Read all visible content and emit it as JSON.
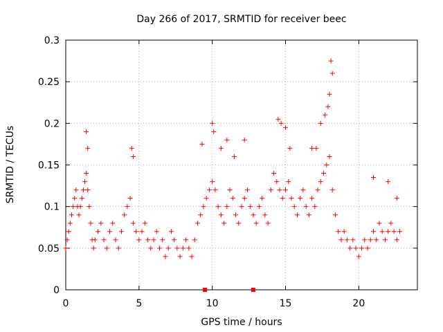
{
  "chart_data": {
    "type": "scatter",
    "title": "Day 266 of 2017, SRMTID for receiver beec",
    "xlabel": "GPS time / hours",
    "ylabel": "SRMTID / TECUs",
    "xlim": [
      0,
      24
    ],
    "ylim": [
      0,
      0.3
    ],
    "x_ticks": [
      0,
      5,
      10,
      15,
      20
    ],
    "x_tick_labels": [
      "0",
      "5",
      "10",
      "15",
      "20"
    ],
    "y_ticks": [
      0,
      0.05,
      0.1,
      0.15,
      0.2,
      0.25,
      0.3
    ],
    "y_tick_labels": [
      "0",
      "0.05",
      "0.1",
      "0.15",
      "0.2",
      "0.25",
      "0.3"
    ],
    "grid": true,
    "marker": "+",
    "color": "#ff0000",
    "series": [
      {
        "name": "SRMTID",
        "x": [
          0.0,
          0.1,
          0.2,
          0.3,
          0.4,
          0.5,
          0.6,
          0.7,
          0.8,
          0.9,
          1.0,
          1.1,
          1.2,
          1.3,
          1.4,
          1.5,
          1.6,
          1.7,
          1.8,
          1.9,
          2.0,
          2.2,
          2.4,
          2.6,
          2.8,
          3.0,
          3.2,
          3.4,
          3.6,
          3.8,
          4.0,
          4.2,
          4.4,
          4.6,
          4.8,
          5.0,
          5.2,
          5.4,
          5.6,
          5.8,
          6.0,
          6.2,
          6.4,
          6.6,
          6.8,
          7.0,
          7.2,
          7.4,
          7.6,
          7.8,
          8.0,
          8.2,
          8.4,
          8.6,
          8.8,
          9.0,
          9.2,
          9.4,
          9.6,
          9.8,
          10.0,
          10.2,
          10.4,
          10.6,
          10.8,
          11.0,
          11.2,
          11.4,
          11.6,
          11.8,
          12.0,
          12.2,
          12.4,
          12.6,
          12.8,
          13.0,
          13.2,
          13.4,
          13.6,
          13.8,
          14.0,
          14.2,
          14.4,
          14.6,
          14.8,
          15.0,
          15.2,
          15.4,
          15.6,
          15.8,
          16.0,
          16.2,
          16.4,
          16.6,
          16.8,
          17.0,
          17.2,
          17.4,
          17.6,
          17.8,
          18.0,
          18.2,
          18.4,
          18.6,
          18.8,
          19.0,
          19.2,
          19.4,
          19.6,
          19.8,
          20.0,
          20.2,
          20.4,
          20.6,
          20.8,
          21.0,
          21.2,
          21.4,
          21.6,
          21.8,
          22.0,
          22.2,
          22.4,
          22.6,
          22.8,
          1.4,
          1.5,
          4.5,
          4.6,
          9.3,
          10.0,
          10.1,
          10.6,
          11.0,
          11.5,
          12.2,
          14.5,
          14.7,
          15.0,
          15.3,
          16.8,
          17.1,
          17.4,
          17.7,
          17.9,
          18.0,
          18.1,
          18.2,
          21.0,
          22.0,
          22.6
        ],
        "y": [
          0.05,
          0.06,
          0.07,
          0.08,
          0.09,
          0.1,
          0.11,
          0.12,
          0.1,
          0.09,
          0.1,
          0.11,
          0.12,
          0.13,
          0.14,
          0.12,
          0.1,
          0.08,
          0.06,
          0.05,
          0.06,
          0.07,
          0.08,
          0.06,
          0.05,
          0.07,
          0.08,
          0.06,
          0.05,
          0.07,
          0.09,
          0.1,
          0.11,
          0.08,
          0.07,
          0.06,
          0.07,
          0.08,
          0.06,
          0.05,
          0.06,
          0.07,
          0.05,
          0.06,
          0.04,
          0.05,
          0.07,
          0.06,
          0.05,
          0.04,
          0.05,
          0.06,
          0.05,
          0.04,
          0.06,
          0.08,
          0.09,
          0.1,
          0.11,
          0.12,
          0.13,
          0.12,
          0.1,
          0.09,
          0.08,
          0.1,
          0.12,
          0.11,
          0.09,
          0.08,
          0.1,
          0.11,
          0.12,
          0.1,
          0.09,
          0.08,
          0.1,
          0.11,
          0.09,
          0.08,
          0.12,
          0.14,
          0.13,
          0.12,
          0.11,
          0.12,
          0.13,
          0.11,
          0.1,
          0.09,
          0.11,
          0.12,
          0.1,
          0.09,
          0.11,
          0.1,
          0.12,
          0.13,
          0.14,
          0.15,
          0.16,
          0.12,
          0.09,
          0.07,
          0.06,
          0.07,
          0.06,
          0.05,
          0.06,
          0.05,
          0.04,
          0.05,
          0.06,
          0.05,
          0.06,
          0.07,
          0.06,
          0.08,
          0.07,
          0.06,
          0.07,
          0.08,
          0.07,
          0.06,
          0.07,
          0.19,
          0.17,
          0.17,
          0.16,
          0.175,
          0.2,
          0.19,
          0.17,
          0.18,
          0.16,
          0.18,
          0.205,
          0.2,
          0.195,
          0.17,
          0.17,
          0.17,
          0.2,
          0.21,
          0.22,
          0.235,
          0.275,
          0.26,
          0.135,
          0.13,
          0.11
        ]
      }
    ],
    "markers_on_axis": [
      {
        "x": 9.5,
        "y": 0
      },
      {
        "x": 12.8,
        "y": 0
      }
    ]
  }
}
